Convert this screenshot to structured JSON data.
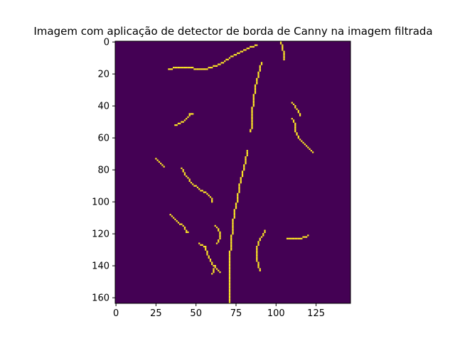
{
  "chart_data": {
    "type": "heatmap",
    "title": "Imagem com aplicação de detector de borda de Canny na imagem filtrada",
    "xlabel": "",
    "ylabel": "",
    "image_width": 147,
    "image_height": 164,
    "xlim": [
      -0.5,
      146.5
    ],
    "ylim": [
      163.5,
      -0.5
    ],
    "x_ticks": [
      0,
      25,
      50,
      75,
      100,
      125
    ],
    "y_ticks": [
      0,
      20,
      40,
      60,
      80,
      100,
      120,
      140,
      160
    ],
    "colormap": "viridis",
    "background_value": 0,
    "edge_value": 1,
    "colors": {
      "background": "#440154",
      "edge": "#fde725",
      "axis": "#000000"
    },
    "edges": [
      [
        [
          33,
          17
        ],
        [
          38,
          16
        ],
        [
          45,
          16
        ],
        [
          52,
          17
        ],
        [
          56,
          17
        ],
        [
          62,
          15
        ],
        [
          68,
          12
        ],
        [
          74,
          8
        ],
        [
          80,
          5
        ],
        [
          84,
          3
        ],
        [
          88,
          2
        ]
      ],
      [
        [
          103,
          0
        ],
        [
          104,
          4
        ],
        [
          105,
          8
        ],
        [
          105,
          11
        ]
      ],
      [
        [
          91,
          13
        ],
        [
          89,
          20
        ],
        [
          87,
          28
        ],
        [
          86,
          36
        ],
        [
          85,
          44
        ],
        [
          85,
          52
        ],
        [
          84,
          56
        ]
      ],
      [
        [
          37,
          52
        ],
        [
          42,
          50
        ],
        [
          45,
          47
        ],
        [
          46,
          45
        ],
        [
          48,
          45
        ]
      ],
      [
        [
          110,
          38
        ],
        [
          113,
          42
        ],
        [
          115,
          46
        ]
      ],
      [
        [
          110,
          48
        ],
        [
          112,
          52
        ],
        [
          112,
          56
        ],
        [
          114,
          60
        ],
        [
          118,
          64
        ],
        [
          121,
          67
        ],
        [
          123,
          69
        ]
      ],
      [
        [
          25,
          73
        ],
        [
          28,
          76
        ],
        [
          30,
          78
        ]
      ],
      [
        [
          41,
          79
        ],
        [
          44,
          84
        ],
        [
          47,
          88
        ],
        [
          52,
          92
        ],
        [
          57,
          95
        ],
        [
          60,
          98
        ],
        [
          60,
          100
        ]
      ],
      [
        [
          82,
          68
        ],
        [
          81,
          75
        ],
        [
          79,
          82
        ],
        [
          77,
          90
        ],
        [
          76,
          98
        ],
        [
          74,
          106
        ],
        [
          73,
          115
        ],
        [
          72,
          125
        ],
        [
          71,
          135
        ],
        [
          71,
          150
        ],
        [
          71,
          163
        ]
      ],
      [
        [
          34,
          108
        ],
        [
          38,
          112
        ],
        [
          42,
          115
        ],
        [
          44,
          119
        ],
        [
          45,
          119
        ]
      ],
      [
        [
          62,
          115
        ],
        [
          64,
          117
        ],
        [
          65,
          121
        ],
        [
          64,
          125
        ],
        [
          63,
          126
        ]
      ],
      [
        [
          52,
          126
        ],
        [
          56,
          128
        ],
        [
          57,
          133
        ],
        [
          59,
          137
        ],
        [
          61,
          140
        ],
        [
          63,
          142
        ],
        [
          65,
          144
        ]
      ],
      [
        [
          62,
          140
        ],
        [
          61,
          143
        ],
        [
          60,
          145
        ]
      ],
      [
        [
          93,
          118
        ],
        [
          91,
          122
        ],
        [
          89,
          125
        ],
        [
          88,
          130
        ],
        [
          88,
          136
        ],
        [
          89,
          140
        ],
        [
          90,
          143
        ]
      ],
      [
        [
          107,
          123
        ],
        [
          114,
          123
        ],
        [
          118,
          122
        ],
        [
          120,
          121
        ],
        [
          119,
          122
        ]
      ]
    ]
  }
}
